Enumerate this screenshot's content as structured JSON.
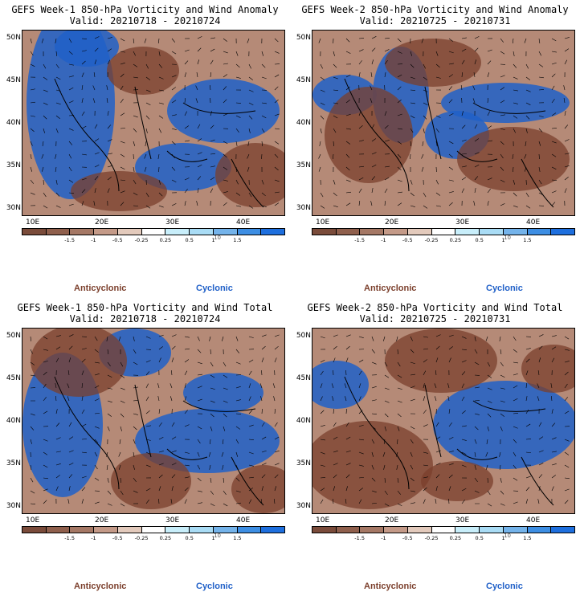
{
  "panels": [
    {
      "title": "GEFS Week-1 850-hPa Vorticity and Wind Anomaly",
      "valid": "Valid: 20210718 - 20210724"
    },
    {
      "title": "GEFS Week-2 850-hPa Vorticity and Wind Anomaly",
      "valid": "Valid: 20210725 - 20210731"
    },
    {
      "title": "GEFS Week-1 850-hPa Vorticity and Wind Total",
      "valid": "Valid: 20210718 - 20210724"
    },
    {
      "title": "GEFS Week-2 850-hPa Vorticity and Wind Total",
      "valid": "Valid: 20210725 - 20210731"
    }
  ],
  "lat_labels": [
    "50N",
    "45N",
    "40N",
    "35N",
    "30N"
  ],
  "lon_labels": [
    "10E",
    "20E",
    "30E",
    "40E"
  ],
  "colorbar": {
    "ticks": [
      "-1.5",
      "-1",
      "-0.5",
      "-0.25",
      "0.25",
      "0.5",
      "1",
      "1.5"
    ],
    "scale_label": "10",
    "colors": [
      "#7a4b3a",
      "#8f5f4c",
      "#a57865",
      "#c49a88",
      "#e3cabc",
      "#ffffff",
      "#c8eefa",
      "#a9dcf5",
      "#74b3ea",
      "#3d8ee3",
      "#1e6fde"
    ]
  },
  "legend": {
    "anticyclonic": "Anticyclonic",
    "cyclonic": "Cyclonic"
  },
  "colors": {
    "anticyclonic": "#7b3f2c",
    "cyclonic": "#2060c8"
  }
}
